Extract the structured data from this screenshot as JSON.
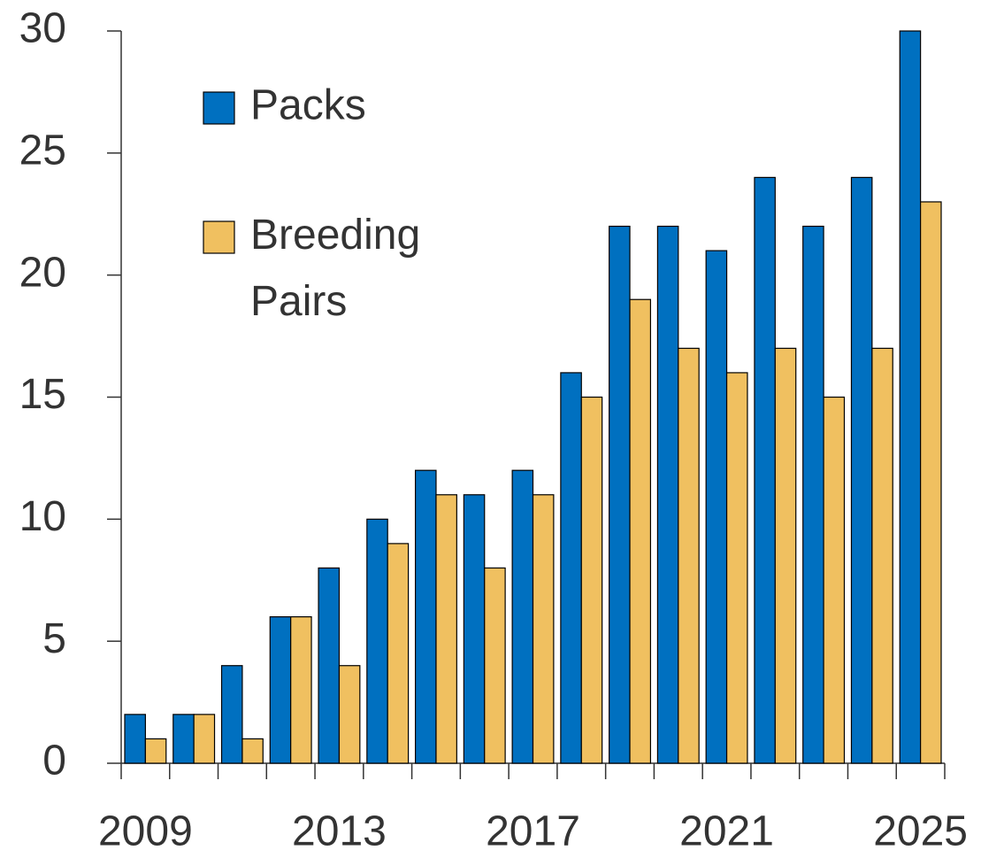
{
  "chart_data": {
    "type": "bar",
    "categories": [
      "2009",
      null,
      null,
      null,
      "2013",
      null,
      null,
      null,
      "2017",
      null,
      null,
      null,
      "2021",
      null,
      null,
      null,
      "2025"
    ],
    "series": [
      {
        "name": "Packs",
        "color": "#0070c0",
        "values": [
          2,
          2,
          4,
          6,
          8,
          10,
          12,
          11,
          12,
          16,
          22,
          22,
          21,
          24,
          22,
          24,
          30
        ]
      },
      {
        "name": "Breeding Pairs",
        "color": "#f0c060",
        "values": [
          1,
          2,
          1,
          6,
          4,
          9,
          11,
          8,
          11,
          15,
          19,
          17,
          16,
          17,
          15,
          17,
          23
        ]
      }
    ],
    "ylim": [
      0,
      30
    ],
    "yticks": [
      0,
      5,
      10,
      15,
      20,
      25,
      30
    ],
    "grid": false,
    "legend": "upper left"
  }
}
